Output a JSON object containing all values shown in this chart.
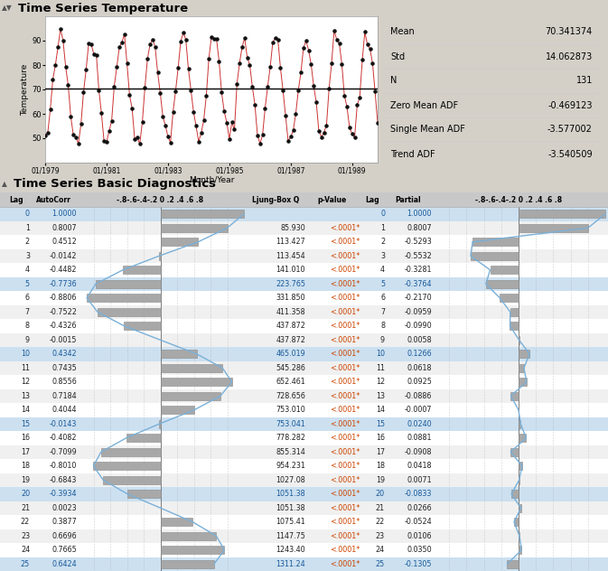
{
  "title_ts": "Time Series Temperature",
  "title_diag": "Time Series Basic Diagnostics",
  "mean": 70.341374,
  "std": 14.062873,
  "n": 131,
  "zero_mean_adf": -0.469123,
  "single_mean_adf": -3.577002,
  "trend_adf": -3.540509,
  "ylim_ts": [
    40,
    100
  ],
  "yticks_ts": [
    50,
    60,
    70,
    80,
    90
  ],
  "xlabel_ts": "Month/Year",
  "ylabel_ts": "Temperature",
  "xtick_labels": [
    "01/1979",
    "01/1981",
    "01/1983",
    "01/1985",
    "01/1987",
    "01/1989"
  ],
  "mean_line": 70.341374,
  "lags": [
    0,
    1,
    2,
    3,
    4,
    5,
    6,
    7,
    8,
    9,
    10,
    11,
    12,
    13,
    14,
    15,
    16,
    17,
    18,
    19,
    20,
    21,
    22,
    23,
    24,
    25
  ],
  "autocorr": [
    1.0,
    0.8007,
    0.4512,
    -0.0142,
    -0.4482,
    -0.7736,
    -0.8806,
    -0.7522,
    -0.4326,
    -0.0015,
    0.4342,
    0.7435,
    0.8556,
    0.7184,
    0.4044,
    -0.0143,
    -0.4082,
    -0.7099,
    -0.801,
    -0.6843,
    -0.3934,
    0.0023,
    0.3877,
    0.6696,
    0.7665,
    0.6424
  ],
  "ljung_box_q": [
    null,
    85.93,
    113.427,
    113.454,
    141.01,
    223.765,
    331.85,
    411.358,
    437.872,
    437.872,
    465.019,
    545.286,
    652.461,
    728.656,
    753.01,
    753.041,
    778.282,
    855.314,
    954.231,
    1027.08,
    1051.38,
    1051.38,
    1075.41,
    1147.75,
    1243.4,
    1311.24
  ],
  "p_values": [
    null,
    "<.0001*",
    "<.0001*",
    "<.0001*",
    "<.0001*",
    "<.0001*",
    "<.0001*",
    "<.0001*",
    "<.0001*",
    "<.0001*",
    "<.0001*",
    "<.0001*",
    "<.0001*",
    "<.0001*",
    "<.0001*",
    "<.0001*",
    "<.0001*",
    "<.0001*",
    "<.0001*",
    "<.0001*",
    "<.0001*",
    "<.0001*",
    "<.0001*",
    "<.0001*",
    "<.0001*",
    "<.0001*"
  ],
  "partial": [
    1.0,
    0.8007,
    -0.5293,
    -0.5532,
    -0.3281,
    -0.3764,
    -0.217,
    -0.0959,
    -0.099,
    0.0058,
    0.1266,
    0.0618,
    0.0925,
    -0.0886,
    -0.0007,
    0.024,
    0.0881,
    -0.0908,
    0.0418,
    0.0071,
    -0.0833,
    0.0266,
    -0.0524,
    0.0106,
    0.035,
    -0.1305
  ],
  "fig_bg": "#d4d0c8",
  "plot_bg": "#ffffff",
  "stats_bg": "#dcdcdc",
  "table_bg": "#ffffff",
  "header_bg": "#c8c8c8",
  "row_alt": "#eeeeee",
  "bar_color": "#a8a8a8",
  "bar_edge": "#888888",
  "curve_color": "#7ab0d8",
  "red_line_color": "#cc3333",
  "dot_color": "#111111",
  "mean_line_color": "#000000",
  "pval_color": "#cc4400",
  "highlight_rows": [
    0,
    5,
    10,
    15,
    20,
    25
  ],
  "highlight_color": "#cce0f0",
  "grid_color": "#aaaaaa",
  "grid_color0": "#666666"
}
